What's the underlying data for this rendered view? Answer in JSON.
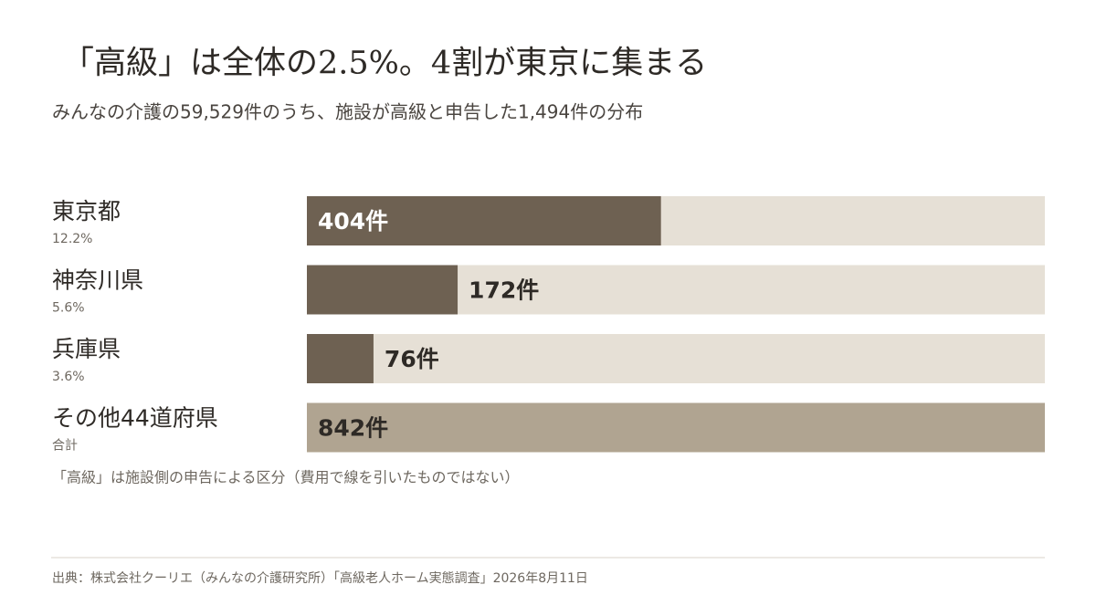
{
  "chart_data": {
    "type": "bar",
    "orientation": "horizontal",
    "title": "「高級」は全体の2.5%。4割が東京に集まる",
    "subtitle": "みんなの介護の59,529件のうち、施設が高級と申告した1,494件の分布",
    "categories": [
      "東京都",
      "神奈川県",
      "兵庫県",
      "その他44道府県"
    ],
    "category_notes": [
      "12.2%",
      "5.6%",
      "3.6%",
      "合計"
    ],
    "values": [
      404,
      172,
      76,
      842
    ],
    "value_labels": [
      "404件",
      "172件",
      "76件",
      "842件"
    ],
    "colors": [
      "#6e6152",
      "#6e6152",
      "#6e6152",
      "#b0a491"
    ],
    "track_color": "#e6e0d6",
    "xlim": [
      0,
      842
    ],
    "note": "「高級」は施設側の申告による区分（費用で線を引いたものではない）",
    "source": "出典：株式会社クーリエ（みんなの介護研究所）「高級老人ホーム実態調査」2026年8月11日"
  }
}
